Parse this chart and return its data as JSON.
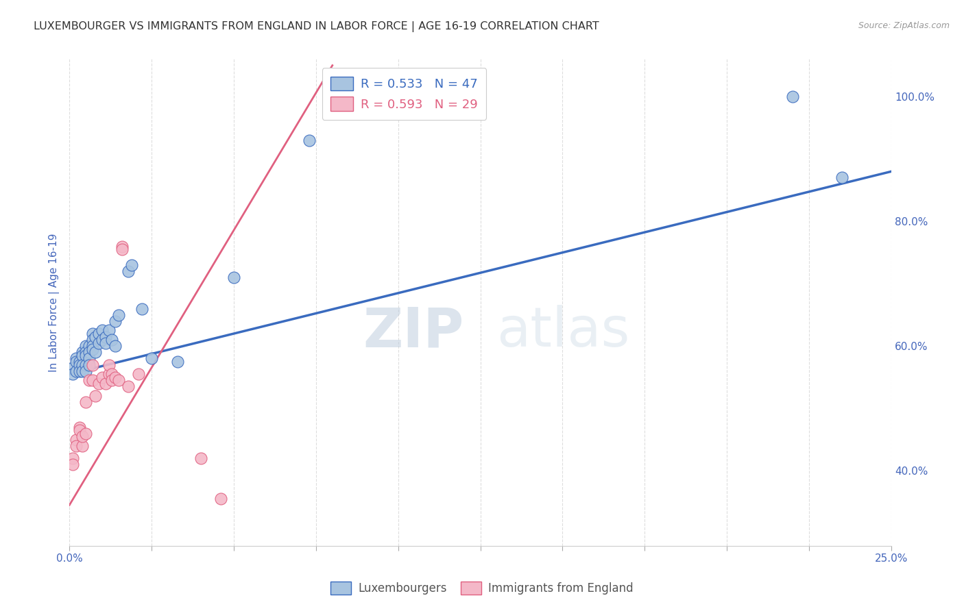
{
  "title": "LUXEMBOURGER VS IMMIGRANTS FROM ENGLAND IN LABOR FORCE | AGE 16-19 CORRELATION CHART",
  "source": "Source: ZipAtlas.com",
  "ylabel": "In Labor Force | Age 16-19",
  "xlim": [
    0.0,
    0.25
  ],
  "ylim": [
    0.28,
    1.06
  ],
  "xticks": [
    0.0,
    0.025,
    0.05,
    0.075,
    0.1,
    0.125,
    0.15,
    0.175,
    0.2,
    0.225,
    0.25
  ],
  "xticklabels": [
    "0.0%",
    "",
    "",
    "",
    "",
    "",
    "",
    "",
    "",
    "",
    "25.0%"
  ],
  "yticks": [
    0.4,
    0.6,
    0.8,
    1.0
  ],
  "yticklabels": [
    "40.0%",
    "60.0%",
    "80.0%",
    "100.0%"
  ],
  "blue_color": "#A8C4E0",
  "pink_color": "#F4B8C8",
  "blue_line_color": "#3A6BBF",
  "pink_line_color": "#E06080",
  "r_blue": 0.533,
  "n_blue": 47,
  "r_pink": 0.593,
  "n_pink": 29,
  "legend_label_blue": "Luxembourgers",
  "legend_label_pink": "Immigrants from England",
  "watermark_zip": "ZIP",
  "watermark_atlas": "atlas",
  "grid_color": "#DDDDDD",
  "title_color": "#333333",
  "axis_label_color": "#4466BB",
  "tick_label_color": "#4466BB",
  "title_fontsize": 11.5,
  "axis_label_fontsize": 11,
  "tick_fontsize": 11,
  "blue_x": [
    0.001,
    0.001,
    0.002,
    0.002,
    0.002,
    0.003,
    0.003,
    0.003,
    0.004,
    0.004,
    0.004,
    0.004,
    0.005,
    0.005,
    0.005,
    0.005,
    0.005,
    0.006,
    0.006,
    0.006,
    0.006,
    0.007,
    0.007,
    0.007,
    0.007,
    0.008,
    0.008,
    0.009,
    0.009,
    0.01,
    0.01,
    0.011,
    0.011,
    0.012,
    0.013,
    0.014,
    0.014,
    0.015,
    0.018,
    0.019,
    0.022,
    0.025,
    0.033,
    0.05,
    0.073,
    0.22,
    0.235
  ],
  "blue_y": [
    0.565,
    0.555,
    0.58,
    0.575,
    0.56,
    0.575,
    0.57,
    0.56,
    0.59,
    0.585,
    0.57,
    0.56,
    0.6,
    0.59,
    0.585,
    0.57,
    0.56,
    0.6,
    0.59,
    0.58,
    0.57,
    0.62,
    0.61,
    0.6,
    0.595,
    0.615,
    0.59,
    0.62,
    0.605,
    0.625,
    0.61,
    0.615,
    0.605,
    0.625,
    0.61,
    0.64,
    0.6,
    0.65,
    0.72,
    0.73,
    0.66,
    0.58,
    0.575,
    0.71,
    0.93,
    1.0,
    0.87
  ],
  "pink_x": [
    0.001,
    0.001,
    0.002,
    0.002,
    0.003,
    0.003,
    0.004,
    0.004,
    0.005,
    0.005,
    0.006,
    0.007,
    0.007,
    0.008,
    0.009,
    0.01,
    0.011,
    0.012,
    0.012,
    0.013,
    0.013,
    0.014,
    0.015,
    0.016,
    0.016,
    0.018,
    0.021,
    0.04,
    0.046
  ],
  "pink_y": [
    0.42,
    0.41,
    0.45,
    0.44,
    0.47,
    0.465,
    0.44,
    0.455,
    0.51,
    0.46,
    0.545,
    0.545,
    0.57,
    0.52,
    0.54,
    0.55,
    0.54,
    0.555,
    0.57,
    0.555,
    0.545,
    0.55,
    0.545,
    0.76,
    0.755,
    0.535,
    0.555,
    0.42,
    0.355
  ],
  "blue_line_x": [
    0.0,
    0.25
  ],
  "blue_line_y": [
    0.555,
    0.88
  ],
  "pink_line_x": [
    0.0,
    0.08
  ],
  "pink_line_y": [
    0.345,
    1.05
  ]
}
